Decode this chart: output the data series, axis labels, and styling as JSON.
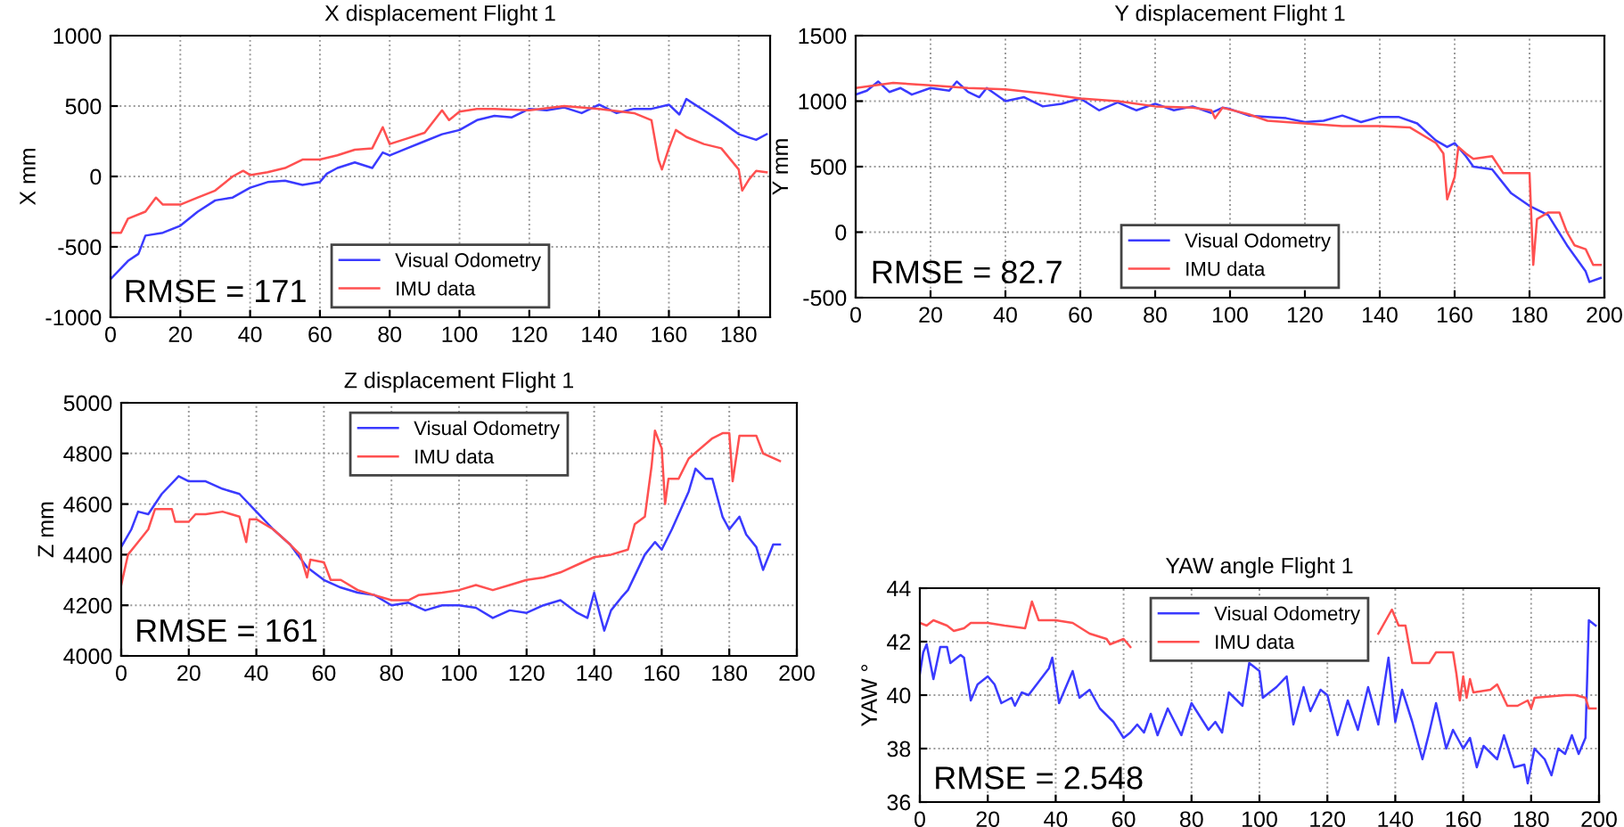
{
  "chart_data": [
    {
      "type": "line",
      "title": "X displacement Flight 1",
      "ylabel": "X mm",
      "xlim": [
        0,
        189
      ],
      "ylim": [
        -1000,
        1000
      ],
      "xticks": [
        0,
        20,
        40,
        60,
        80,
        100,
        120,
        140,
        160,
        180
      ],
      "yticks": [
        -1000,
        -500,
        0,
        500,
        1000
      ],
      "grid": true,
      "legend": "bottom",
      "annotations": [
        "RMSE = 171"
      ],
      "series": [
        {
          "name": "Visual Odometry",
          "color": "#3a3aff",
          "x": [
            0,
            5,
            8,
            10,
            15,
            20,
            25,
            30,
            35,
            40,
            45,
            50,
            55,
            60,
            62,
            65,
            70,
            75,
            78,
            80,
            85,
            90,
            95,
            100,
            105,
            110,
            115,
            120,
            125,
            130,
            135,
            140,
            145,
            150,
            155,
            160,
            163,
            165,
            170,
            175,
            180,
            185,
            188
          ],
          "values": [
            -730,
            -600,
            -550,
            -420,
            -400,
            -350,
            -250,
            -170,
            -150,
            -80,
            -40,
            -30,
            -60,
            -40,
            20,
            60,
            100,
            60,
            170,
            150,
            200,
            250,
            300,
            330,
            400,
            430,
            420,
            480,
            470,
            490,
            450,
            510,
            450,
            480,
            480,
            510,
            440,
            550,
            470,
            390,
            300,
            260,
            300
          ]
        },
        {
          "name": "IMU data",
          "color": "#ff5050",
          "x": [
            0,
            3,
            5,
            10,
            13,
            15,
            20,
            25,
            30,
            35,
            38,
            40,
            45,
            50,
            55,
            60,
            65,
            70,
            75,
            78,
            80,
            85,
            90,
            95,
            97,
            100,
            105,
            110,
            120,
            130,
            140,
            150,
            155,
            157,
            158,
            160,
            162,
            165,
            170,
            175,
            180,
            181,
            183,
            185,
            188
          ],
          "values": [
            -400,
            -400,
            -300,
            -250,
            -150,
            -200,
            -200,
            -150,
            -100,
            0,
            40,
            10,
            30,
            60,
            120,
            120,
            150,
            190,
            200,
            350,
            230,
            270,
            310,
            470,
            400,
            460,
            480,
            480,
            470,
            500,
            480,
            450,
            400,
            120,
            50,
            200,
            330,
            280,
            230,
            200,
            50,
            -100,
            -20,
            40,
            30
          ]
        }
      ]
    },
    {
      "type": "line",
      "title": "Y displacement Flight 1",
      "ylabel": "Y mm",
      "xlim": [
        0,
        200
      ],
      "ylim": [
        -500,
        1500
      ],
      "xticks": [
        0,
        20,
        40,
        60,
        80,
        100,
        120,
        140,
        160,
        180,
        200
      ],
      "yticks": [
        -500,
        0,
        500,
        1000,
        1500
      ],
      "grid": true,
      "legend": "bottom",
      "annotations": [
        "RMSE = 82.7"
      ],
      "series": [
        {
          "name": "Visual Odometry",
          "color": "#3a3aff",
          "x": [
            0,
            3,
            6,
            9,
            12,
            15,
            20,
            25,
            27,
            30,
            33,
            35,
            40,
            45,
            50,
            55,
            60,
            65,
            70,
            75,
            80,
            85,
            90,
            95,
            98,
            100,
            105,
            110,
            115,
            120,
            125,
            130,
            135,
            140,
            145,
            150,
            155,
            158,
            160,
            163,
            165,
            170,
            175,
            180,
            185,
            190,
            195,
            196,
            199
          ],
          "values": [
            1050,
            1080,
            1150,
            1070,
            1100,
            1050,
            1100,
            1080,
            1150,
            1070,
            1030,
            1100,
            1000,
            1030,
            960,
            980,
            1020,
            930,
            990,
            930,
            980,
            930,
            960,
            910,
            950,
            940,
            890,
            880,
            870,
            840,
            850,
            890,
            840,
            880,
            880,
            830,
            700,
            650,
            680,
            580,
            500,
            480,
            300,
            200,
            130,
            -100,
            -300,
            -380,
            -350
          ]
        },
        {
          "name": "IMU data",
          "color": "#ff5050",
          "x": [
            0,
            10,
            20,
            30,
            40,
            50,
            60,
            70,
            80,
            90,
            95,
            96,
            98,
            105,
            110,
            120,
            130,
            140,
            148,
            155,
            157,
            158,
            160,
            161,
            163,
            165,
            170,
            173,
            180,
            181,
            182,
            185,
            188,
            190,
            192,
            195,
            197,
            199
          ],
          "values": [
            1100,
            1140,
            1120,
            1100,
            1090,
            1060,
            1020,
            1000,
            960,
            950,
            930,
            870,
            950,
            900,
            850,
            830,
            810,
            810,
            800,
            680,
            600,
            250,
            420,
            650,
            600,
            560,
            580,
            450,
            450,
            -250,
            100,
            150,
            150,
            0,
            -100,
            -130,
            -250,
            -250
          ]
        }
      ]
    },
    {
      "type": "line",
      "title": "Z displacement Flight 1",
      "ylabel": "Z mm",
      "xlim": [
        0,
        200
      ],
      "ylim": [
        4000,
        5000
      ],
      "xticks": [
        0,
        20,
        40,
        60,
        80,
        100,
        120,
        140,
        160,
        180,
        200
      ],
      "yticks": [
        4000,
        4200,
        4400,
        4600,
        4800,
        5000
      ],
      "grid": true,
      "legend": "top",
      "annotations": [
        "RMSE = 161"
      ],
      "series": [
        {
          "name": "Visual Odometry",
          "color": "#3a3aff",
          "x": [
            0,
            3,
            5,
            8,
            12,
            17,
            20,
            25,
            30,
            35,
            40,
            45,
            50,
            55,
            60,
            65,
            70,
            75,
            80,
            85,
            90,
            95,
            100,
            105,
            110,
            115,
            120,
            125,
            130,
            135,
            138,
            140,
            143,
            145,
            148,
            150,
            155,
            158,
            160,
            163,
            165,
            168,
            170,
            173,
            175,
            178,
            180,
            183,
            185,
            188,
            190,
            193,
            195
          ],
          "values": [
            4430,
            4500,
            4570,
            4560,
            4640,
            4710,
            4690,
            4690,
            4660,
            4640,
            4570,
            4500,
            4440,
            4350,
            4300,
            4270,
            4250,
            4240,
            4200,
            4210,
            4180,
            4200,
            4200,
            4190,
            4150,
            4180,
            4170,
            4200,
            4220,
            4170,
            4150,
            4250,
            4100,
            4180,
            4230,
            4260,
            4400,
            4450,
            4420,
            4500,
            4560,
            4650,
            4740,
            4700,
            4700,
            4550,
            4500,
            4550,
            4480,
            4430,
            4340,
            4440,
            4440
          ]
        },
        {
          "name": "IMU data",
          "color": "#ff5050",
          "x": [
            0,
            2,
            5,
            8,
            10,
            15,
            16,
            20,
            22,
            25,
            30,
            35,
            37,
            38,
            40,
            45,
            50,
            53,
            55,
            56,
            60,
            62,
            65,
            70,
            75,
            80,
            85,
            88,
            95,
            100,
            105,
            110,
            115,
            120,
            125,
            130,
            135,
            140,
            145,
            150,
            152,
            155,
            157,
            158,
            160,
            161,
            162,
            165,
            168,
            175,
            178,
            180,
            181,
            183,
            188,
            190,
            195
          ],
          "values": [
            4280,
            4400,
            4450,
            4500,
            4580,
            4580,
            4530,
            4530,
            4560,
            4560,
            4570,
            4550,
            4450,
            4540,
            4540,
            4500,
            4440,
            4400,
            4310,
            4380,
            4370,
            4300,
            4300,
            4260,
            4240,
            4220,
            4220,
            4240,
            4250,
            4260,
            4280,
            4260,
            4280,
            4300,
            4310,
            4330,
            4360,
            4390,
            4400,
            4420,
            4520,
            4550,
            4750,
            4890,
            4820,
            4600,
            4700,
            4700,
            4780,
            4860,
            4880,
            4880,
            4690,
            4870,
            4870,
            4800,
            4770
          ]
        }
      ]
    },
    {
      "type": "line",
      "title": "YAW angle Flight 1",
      "ylabel": "YAW °",
      "xlim": [
        0,
        200
      ],
      "ylim": [
        36,
        44
      ],
      "xticks": [
        0,
        20,
        40,
        60,
        80,
        100,
        120,
        140,
        160,
        180,
        200
      ],
      "yticks": [
        36,
        38,
        40,
        42,
        44
      ],
      "grid": true,
      "legend": "top",
      "annotations": [
        "RMSE = 2.548"
      ],
      "series": [
        {
          "name": "Visual Odometry",
          "color": "#3a3aff",
          "x": [
            0,
            1,
            2,
            4,
            6,
            8,
            9,
            12,
            13,
            15,
            17,
            20,
            22,
            24,
            27,
            28,
            30,
            32,
            35,
            38,
            39,
            41,
            45,
            47,
            50,
            53,
            57,
            60,
            62,
            64,
            66,
            68,
            70,
            73,
            77,
            80,
            85,
            87,
            89,
            91,
            95,
            97,
            99,
            100,
            101,
            105,
            108,
            110,
            113,
            115,
            118,
            120,
            123,
            126,
            129,
            132,
            135,
            138,
            140,
            142,
            145,
            148,
            150,
            152,
            155,
            157,
            160,
            162,
            164,
            166,
            170,
            172,
            175,
            178,
            179,
            181,
            184,
            186,
            188,
            190,
            192,
            194,
            196,
            197,
            199
          ],
          "values": [
            40.8,
            41.6,
            41.9,
            40.6,
            41.8,
            41.8,
            41.2,
            41.5,
            41.4,
            39.8,
            40.4,
            40.7,
            40.4,
            39.7,
            39.9,
            39.6,
            40.1,
            40.0,
            40.5,
            41.0,
            41.4,
            39.7,
            40.9,
            39.9,
            40.2,
            39.5,
            39.0,
            38.4,
            38.6,
            38.9,
            38.6,
            39.3,
            38.5,
            39.5,
            38.5,
            39.7,
            38.7,
            39.0,
            38.6,
            40.1,
            39.6,
            41.2,
            41.0,
            40.9,
            39.9,
            40.3,
            40.7,
            38.9,
            40.3,
            39.4,
            40.2,
            40.0,
            38.5,
            39.8,
            38.7,
            40.3,
            38.9,
            41.4,
            39.0,
            40.2,
            39.0,
            37.6,
            38.6,
            39.7,
            38.0,
            38.7,
            38.0,
            38.4,
            37.3,
            38.1,
            37.6,
            38.5,
            37.3,
            37.4,
            36.7,
            38.0,
            37.6,
            37.0,
            38.0,
            37.8,
            38.5,
            37.8,
            38.4,
            42.8,
            42.6
          ]
        },
        {
          "name": "IMU data",
          "color": "#ff5050",
          "x": [
            0,
            2,
            4,
            8,
            10,
            13,
            15,
            20,
            25,
            31,
            33,
            35,
            40,
            45,
            50,
            55,
            56,
            60,
            62,
            90,
            126,
            130,
            135,
            139,
            141,
            143,
            145,
            150,
            152,
            157,
            158,
            159,
            160,
            161,
            162,
            163,
            168,
            170,
            173,
            176,
            179,
            180,
            181,
            190,
            193,
            196,
            197,
            199
          ],
          "values": [
            42.7,
            42.6,
            42.8,
            42.6,
            42.4,
            42.5,
            42.7,
            42.7,
            42.6,
            42.5,
            43.5,
            42.8,
            42.8,
            42.7,
            42.3,
            42.1,
            41.9,
            42.1,
            41.8,
            null,
            null,
            null,
            42.3,
            43.2,
            42.6,
            42.6,
            41.2,
            41.2,
            41.6,
            41.6,
            40.8,
            39.8,
            40.7,
            39.9,
            40.6,
            40.1,
            40.2,
            40.4,
            39.6,
            39.6,
            39.8,
            39.5,
            39.9,
            40.0,
            40.0,
            39.9,
            39.5,
            39.5
          ]
        }
      ]
    }
  ]
}
